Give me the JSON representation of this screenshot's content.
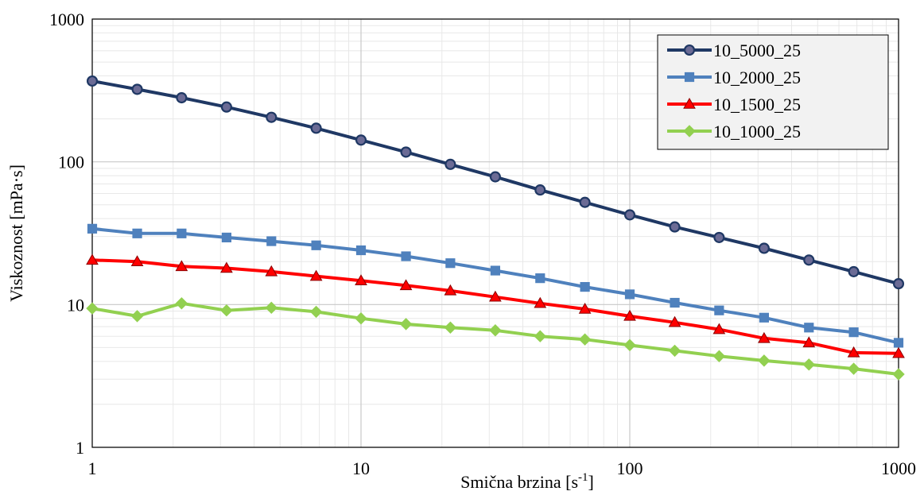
{
  "chart_data": {
    "type": "line",
    "title": "",
    "xlabel": "Smična brzina [s",
    "xlabel_sup": "-1",
    "xlabel_end": "]",
    "ylabel": "Viskoznost [mPa·s]",
    "x_scale": "log",
    "y_scale": "log",
    "xlim": [
      1,
      1000
    ],
    "ylim": [
      1,
      1000
    ],
    "x_ticks": [
      "1",
      "10",
      "100",
      "1000"
    ],
    "y_ticks": [
      "1",
      "10",
      "100",
      "1000"
    ],
    "grid": true,
    "legend_position": "top-right",
    "x": [
      1,
      1.47,
      2.15,
      3.16,
      4.64,
      6.81,
      10,
      14.7,
      21.5,
      31.6,
      46.4,
      68.1,
      100,
      147,
      215,
      316,
      464,
      681,
      1000
    ],
    "series": [
      {
        "name": "10_5000_25",
        "color": "#1f3864",
        "marker": "circle",
        "values": [
          368,
          322,
          281,
          242,
          205,
          172,
          142,
          117,
          96,
          78.5,
          63.5,
          52,
          42.5,
          35,
          29.5,
          24.8,
          20.5,
          17,
          14
        ]
      },
      {
        "name": "10_2000_25",
        "color": "#4f81bd",
        "marker": "square",
        "values": [
          34,
          31.5,
          31.5,
          29.5,
          27.8,
          26,
          24,
          21.8,
          19.5,
          17.3,
          15.3,
          13.3,
          11.8,
          10.3,
          9.1,
          8.1,
          6.9,
          6.4,
          5.4
        ]
      },
      {
        "name": "10_1500_25",
        "color": "#ff0000",
        "marker": "triangle",
        "values": [
          20.5,
          20,
          18.5,
          18,
          17,
          15.8,
          14.7,
          13.6,
          12.5,
          11.3,
          10.2,
          9.3,
          8.3,
          7.5,
          6.7,
          5.8,
          5.4,
          4.6,
          4.55
        ]
      },
      {
        "name": "10_1000_25",
        "color": "#92d050",
        "marker": "diamond",
        "values": [
          9.4,
          8.3,
          10.2,
          9.1,
          9.5,
          8.9,
          8.0,
          7.3,
          6.9,
          6.6,
          6.0,
          5.7,
          5.2,
          4.75,
          4.35,
          4.05,
          3.8,
          3.55,
          3.25
        ]
      }
    ]
  }
}
